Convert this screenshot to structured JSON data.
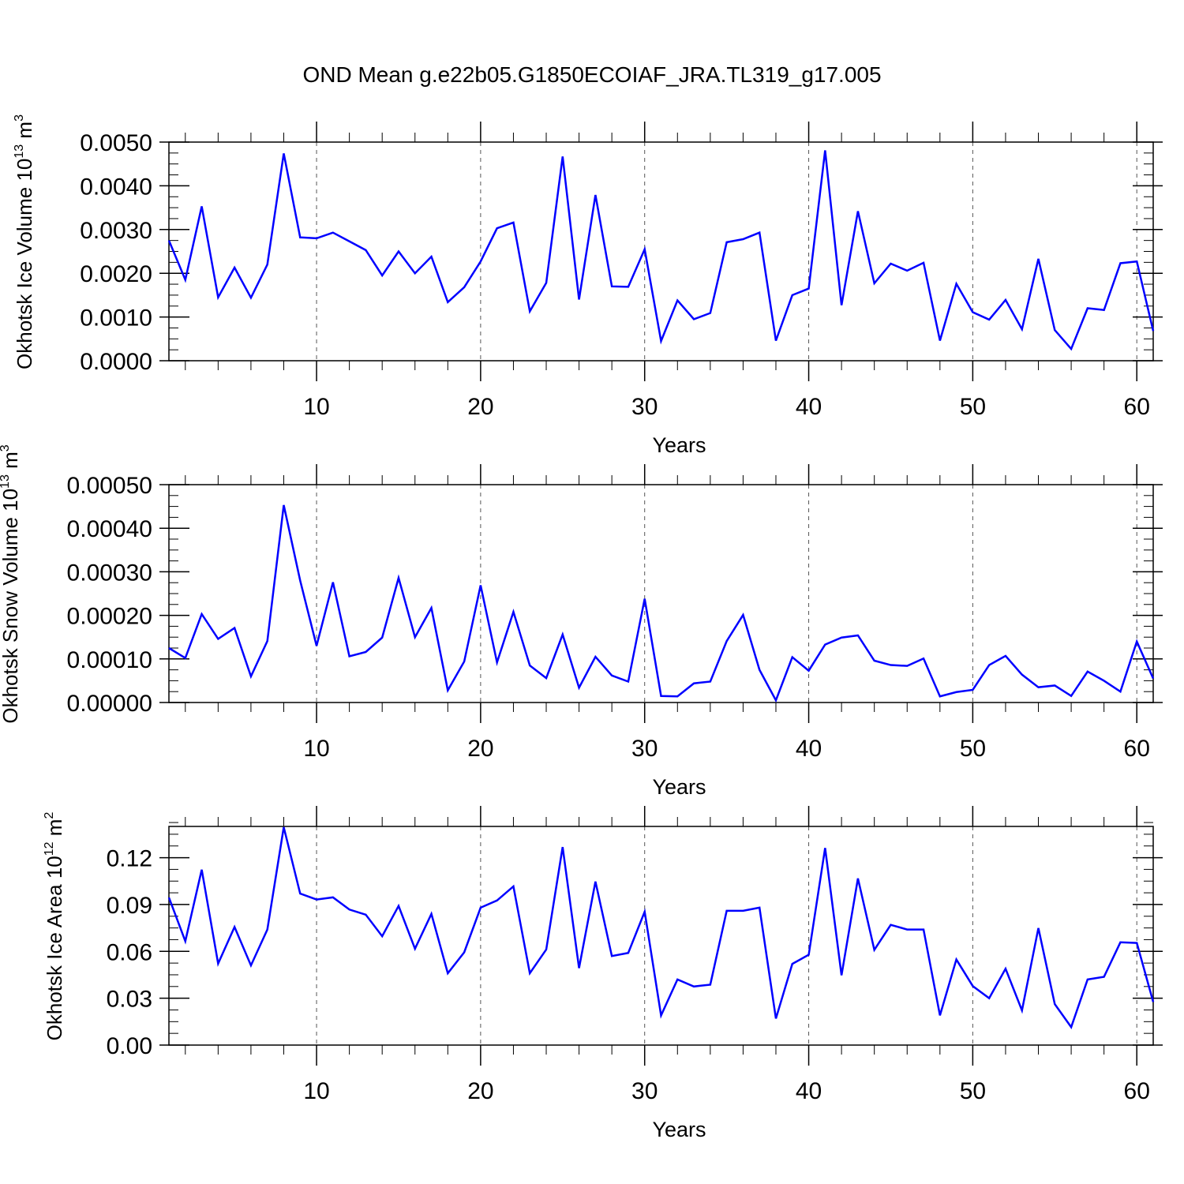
{
  "title": "OND Mean g.e22b05.G1850ECOIAF_JRA.TL319_g17.005",
  "colors": {
    "line": "#0000ff",
    "axis": "#000000",
    "grid": "#555555"
  },
  "chart_data": [
    {
      "type": "line",
      "xlabel": "Years",
      "ylabel_main": "Okhotsk Ice Volume 10",
      "ylabel_exp": "13",
      "ylabel_unit": "m",
      "ylabel_unit_exp": "3",
      "xlim": [
        1,
        61
      ],
      "ylim": [
        0,
        0.005
      ],
      "x_ticks": [
        "10",
        "20",
        "30",
        "40",
        "50",
        "60"
      ],
      "y_ticks": [
        "0.0000",
        "0.0010",
        "0.0020",
        "0.0030",
        "0.0040",
        "0.0050"
      ],
      "grid": "dashed vertical at x ticks",
      "series": [
        {
          "name": "Okhotsk Ice Volume",
          "values": [
            0.00275,
            0.00185,
            0.00353,
            0.00145,
            0.00213,
            0.00144,
            0.0022,
            0.00474,
            0.00282,
            0.0028,
            0.00293,
            0.00273,
            0.00253,
            0.00195,
            0.0025,
            0.002,
            0.00238,
            0.00134,
            0.00168,
            0.00227,
            0.00303,
            0.00316,
            0.00113,
            0.00178,
            0.00467,
            0.0014,
            0.00379,
            0.0017,
            0.00169,
            0.00255,
            0.00045,
            0.00138,
            0.00095,
            0.00109,
            0.00271,
            0.00278,
            0.00293,
            0.00046,
            0.0015,
            0.00165,
            0.00481,
            0.00127,
            0.00342,
            0.00177,
            0.00222,
            0.00206,
            0.00224,
            0.00046,
            0.00176,
            0.00111,
            0.00094,
            0.00139,
            0.00072,
            0.00233,
            0.0007,
            0.00027,
            0.0012,
            0.00116,
            0.00223,
            0.00227,
            0.00068
          ]
        }
      ]
    },
    {
      "type": "line",
      "xlabel": "Years",
      "ylabel_main": "Okhotsk Snow Volume 10",
      "ylabel_exp": "13",
      "ylabel_unit": "m",
      "ylabel_unit_exp": "3",
      "xlim": [
        1,
        61
      ],
      "ylim": [
        0,
        0.0005
      ],
      "x_ticks": [
        "10",
        "20",
        "30",
        "40",
        "50",
        "60"
      ],
      "y_ticks": [
        "0.00000",
        "0.00010",
        "0.00020",
        "0.00030",
        "0.00040",
        "0.00050"
      ],
      "grid": "dashed vertical at x ticks",
      "series": [
        {
          "name": "Okhotsk Snow Volume",
          "values": [
            0.000125,
            0.000102,
            0.000203,
            0.000146,
            0.000171,
            6e-05,
            0.000141,
            0.000453,
            0.00028,
            0.00013,
            0.000276,
            0.000106,
            0.000116,
            0.000149,
            0.000286,
            0.00015,
            0.000217,
            2.8e-05,
            9.4e-05,
            0.000269,
            9.2e-05,
            0.000208,
            8.5e-05,
            5.6e-05,
            0.000156,
            3.4e-05,
            0.000105,
            6.2e-05,
            4.8e-05,
            0.000238,
            1.5e-05,
            1.4e-05,
            4.4e-05,
            4.8e-05,
            0.000141,
            0.000201,
            7.5e-05,
            5e-06,
            0.000104,
            7.3e-05,
            0.000133,
            0.000149,
            0.000154,
            9.6e-05,
            8.6e-05,
            8.4e-05,
            0.000101,
            1.4e-05,
            2.4e-05,
            2.9e-05,
            8.6e-05,
            0.000107,
            6.4e-05,
            3.5e-05,
            3.9e-05,
            1.5e-05,
            7.1e-05,
            5e-05,
            2.5e-05,
            0.00014,
            5.5e-05
          ]
        }
      ]
    },
    {
      "type": "line",
      "xlabel": "Years",
      "ylabel_main": "Okhotsk Ice Area 10",
      "ylabel_exp": "12",
      "ylabel_unit": "m",
      "ylabel_unit_exp": "2",
      "xlim": [
        1,
        61
      ],
      "ylim": [
        0,
        0.14
      ],
      "x_ticks": [
        "10",
        "20",
        "30",
        "40",
        "50",
        "60"
      ],
      "y_ticks": [
        "0.00",
        "0.03",
        "0.06",
        "0.09",
        "0.12"
      ],
      "grid": "dashed vertical at x ticks",
      "series": [
        {
          "name": "Okhotsk Ice Area",
          "values": [
            0.0945,
            0.0665,
            0.1123,
            0.0522,
            0.0756,
            0.051,
            0.074,
            0.1395,
            0.097,
            0.0932,
            0.0946,
            0.0868,
            0.0835,
            0.0697,
            0.0891,
            0.0617,
            0.084,
            0.046,
            0.0594,
            0.088,
            0.0926,
            0.1016,
            0.046,
            0.0612,
            0.1268,
            0.0493,
            0.1047,
            0.057,
            0.059,
            0.0854,
            0.019,
            0.042,
            0.0375,
            0.0387,
            0.086,
            0.086,
            0.088,
            0.017,
            0.052,
            0.0578,
            0.1262,
            0.0447,
            0.1067,
            0.061,
            0.077,
            0.074,
            0.074,
            0.019,
            0.0548,
            0.0378,
            0.03,
            0.0489,
            0.0222,
            0.0749,
            0.0262,
            0.0115,
            0.042,
            0.0437,
            0.0658,
            0.0654,
            0.0276
          ]
        }
      ]
    }
  ]
}
